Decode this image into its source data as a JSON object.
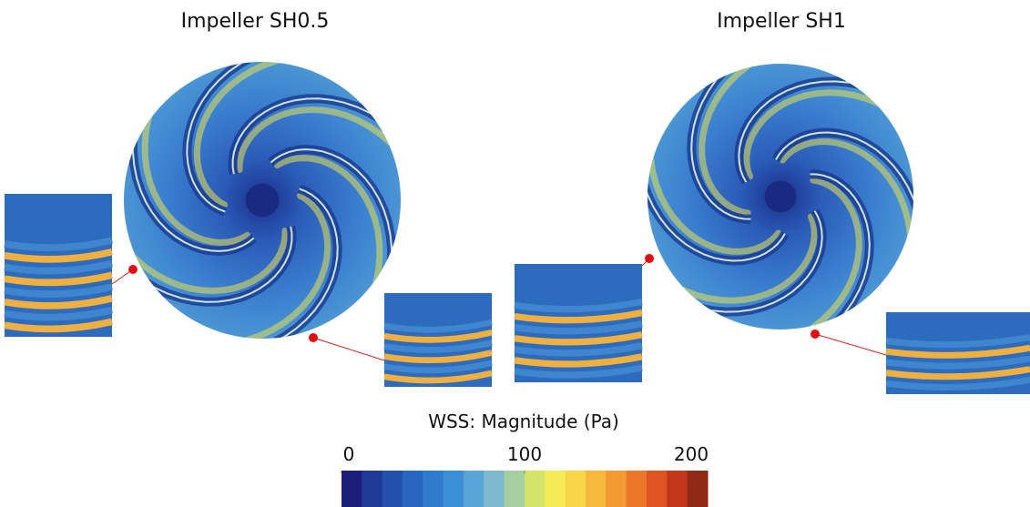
{
  "panels": [
    {
      "title": "Impeller SH0.5"
    },
    {
      "title": "Impeller SH1"
    }
  ],
  "colorbar": {
    "label": "WSS: Magnitude (Pa)",
    "min": 0,
    "max": 200,
    "ticks": [
      0,
      100,
      200
    ],
    "colors": [
      "#1b1f7a",
      "#1e3a96",
      "#2350ad",
      "#2966bf",
      "#2f7bcc",
      "#3b8fd4",
      "#58a5d6",
      "#7dbad0",
      "#a6cfa0",
      "#d4e36a",
      "#f4ec55",
      "#f8d648",
      "#f7b93d",
      "#f39a33",
      "#ec772a",
      "#de5423",
      "#c2371c",
      "#8f2814"
    ]
  }
}
